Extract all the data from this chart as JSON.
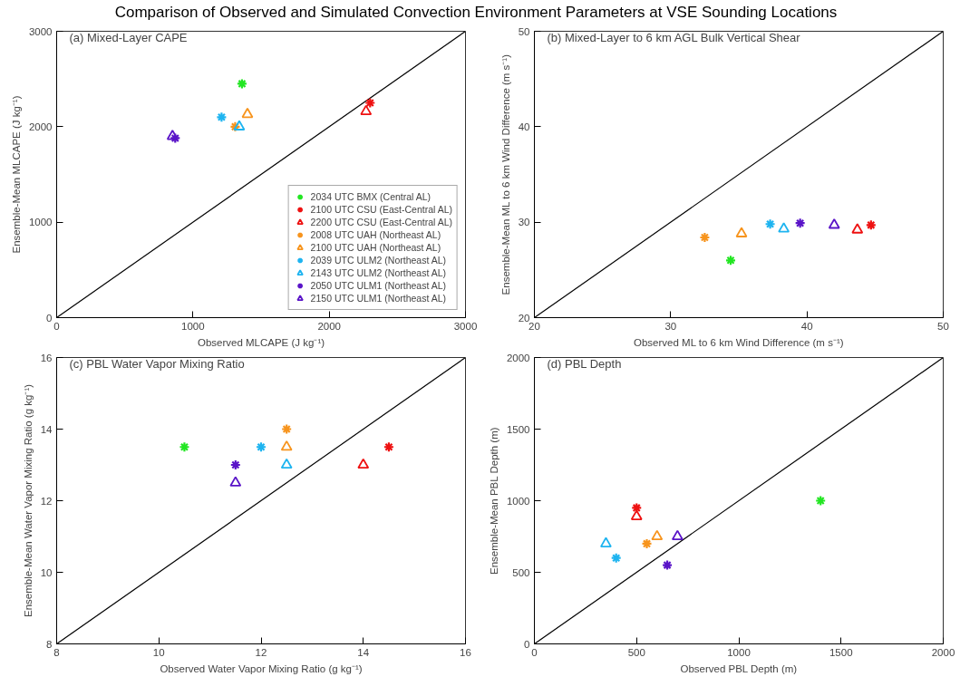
{
  "chart_data": [
    {
      "type": "scatter",
      "title": "(a) Mixed-Layer CAPE",
      "annotations": [
        "Comparison of Observed and Simulated Convection Environment Parameters at VSE Sounding Locations"
      ],
      "xlabel": "Observed MLCAPE (J kg⁻¹)",
      "ylabel": "Ensemble-Mean MLCAPE (J kg⁻¹)",
      "xlim": [
        0,
        3000
      ],
      "ylim": [
        0,
        3000
      ],
      "xticks": [
        0,
        1000,
        2000,
        3000
      ],
      "yticks": [
        0,
        1000,
        2000,
        3000
      ],
      "grid": false,
      "legend": "bottom right",
      "series": [
        {
          "type": "line",
          "color": "#000000",
          "x": [
            0,
            3000
          ],
          "values": [
            0,
            3000
          ]
        },
        {
          "name": "2034 UTC BMX (Central AL)",
          "color": "#22e622",
          "marker": "cross",
          "x": [
            1360
          ],
          "values": [
            2450
          ]
        },
        {
          "name": "2100 UTC CSU (East-Central AL)",
          "color": "#ee1111",
          "marker": "cross",
          "x": [
            2300
          ],
          "values": [
            2250
          ]
        },
        {
          "name": "2200 UTC CSU (East-Central AL)",
          "color": "#ee1111",
          "marker": "triangle",
          "x": [
            2270
          ],
          "values": [
            2160
          ]
        },
        {
          "name": "2008 UTC UAH (Northeast AL)",
          "color": "#f7941d",
          "marker": "cross",
          "x": [
            1310
          ],
          "values": [
            2000
          ]
        },
        {
          "name": "2100 UTC UAH (Northeast AL)",
          "color": "#f7941d",
          "marker": "triangle",
          "x": [
            1400
          ],
          "values": [
            2130
          ]
        },
        {
          "name": "2039 UTC ULM2 (Northeast AL)",
          "color": "#1eb4f0",
          "marker": "cross",
          "x": [
            1210
          ],
          "values": [
            2100
          ]
        },
        {
          "name": "2143 UTC ULM2 (Northeast AL)",
          "color": "#1eb4f0",
          "marker": "triangle",
          "x": [
            1340
          ],
          "values": [
            2000
          ]
        },
        {
          "name": "2050 UTC ULM1 (Northeast AL)",
          "color": "#5a14c8",
          "marker": "cross",
          "x": [
            870
          ],
          "values": [
            1880
          ]
        },
        {
          "name": "2150 UTC ULM1 (Northeast AL)",
          "color": "#5a14c8",
          "marker": "triangle",
          "x": [
            850
          ],
          "values": [
            1900
          ]
        }
      ]
    },
    {
      "type": "scatter",
      "title": "(b) Mixed-Layer to 6 km AGL Bulk Vertical Shear",
      "xlabel": "Observed ML to 6 km Wind Difference (m s⁻¹)",
      "ylabel": "Ensemble-Mean ML to 6 km Wind Difference (m s⁻¹)",
      "xlim": [
        20,
        50
      ],
      "ylim": [
        20,
        50
      ],
      "xticks": [
        20,
        30,
        40,
        50
      ],
      "yticks": [
        20,
        30,
        40,
        50
      ],
      "grid": false,
      "series": [
        {
          "type": "line",
          "color": "#000000",
          "x": [
            20,
            50
          ],
          "values": [
            20,
            50
          ]
        },
        {
          "color": "#22e622",
          "marker": "cross",
          "x": [
            34.4
          ],
          "values": [
            26.0
          ]
        },
        {
          "color": "#ee1111",
          "marker": "cross",
          "x": [
            44.7
          ],
          "values": [
            29.7
          ]
        },
        {
          "color": "#ee1111",
          "marker": "triangle",
          "x": [
            43.7
          ],
          "values": [
            29.2
          ]
        },
        {
          "color": "#f7941d",
          "marker": "cross",
          "x": [
            32.5
          ],
          "values": [
            28.4
          ]
        },
        {
          "color": "#f7941d",
          "marker": "triangle",
          "x": [
            35.2
          ],
          "values": [
            28.8
          ]
        },
        {
          "color": "#1eb4f0",
          "marker": "cross",
          "x": [
            37.3
          ],
          "values": [
            29.8
          ]
        },
        {
          "color": "#1eb4f0",
          "marker": "triangle",
          "x": [
            38.3
          ],
          "values": [
            29.3
          ]
        },
        {
          "color": "#5a14c8",
          "marker": "cross",
          "x": [
            39.5
          ],
          "values": [
            29.9
          ]
        },
        {
          "color": "#5a14c8",
          "marker": "triangle",
          "x": [
            42.0
          ],
          "values": [
            29.7
          ]
        }
      ]
    },
    {
      "type": "scatter",
      "title": "(c) PBL Water Vapor Mixing Ratio",
      "xlabel": "Observed Water Vapor Mixing Ratio (g kg⁻¹)",
      "ylabel": "Ensemble-Mean Water Vapor Mixing Ratio (g kg⁻¹)",
      "xlim": [
        8,
        16
      ],
      "ylim": [
        8,
        16
      ],
      "xticks": [
        8,
        10,
        12,
        14,
        16
      ],
      "yticks": [
        8,
        10,
        12,
        14,
        16
      ],
      "grid": false,
      "series": [
        {
          "type": "line",
          "color": "#000000",
          "x": [
            8,
            16
          ],
          "values": [
            8,
            16
          ]
        },
        {
          "color": "#22e622",
          "marker": "cross",
          "x": [
            10.5
          ],
          "values": [
            13.5
          ]
        },
        {
          "color": "#ee1111",
          "marker": "cross",
          "x": [
            14.5
          ],
          "values": [
            13.5
          ]
        },
        {
          "color": "#ee1111",
          "marker": "triangle",
          "x": [
            14.0
          ],
          "values": [
            13.0
          ]
        },
        {
          "color": "#f7941d",
          "marker": "cross",
          "x": [
            12.5
          ],
          "values": [
            14.0
          ]
        },
        {
          "color": "#f7941d",
          "marker": "triangle",
          "x": [
            12.5
          ],
          "values": [
            13.5
          ]
        },
        {
          "color": "#1eb4f0",
          "marker": "cross",
          "x": [
            12.0
          ],
          "values": [
            13.5
          ]
        },
        {
          "color": "#1eb4f0",
          "marker": "triangle",
          "x": [
            12.5
          ],
          "values": [
            13.0
          ]
        },
        {
          "color": "#5a14c8",
          "marker": "cross",
          "x": [
            11.5
          ],
          "values": [
            13.0
          ]
        },
        {
          "color": "#5a14c8",
          "marker": "triangle",
          "x": [
            11.5
          ],
          "values": [
            12.5
          ]
        }
      ]
    },
    {
      "type": "scatter",
      "title": "(d) PBL Depth",
      "xlabel": "Observed PBL Depth (m)",
      "ylabel": "Ensemble-Mean PBL Depth (m)",
      "xlim": [
        0,
        2000
      ],
      "ylim": [
        0,
        2000
      ],
      "xticks": [
        0,
        500,
        1000,
        1500,
        2000
      ],
      "yticks": [
        0,
        500,
        1000,
        1500,
        2000
      ],
      "grid": false,
      "series": [
        {
          "type": "line",
          "color": "#000000",
          "x": [
            0,
            2000
          ],
          "values": [
            0,
            2000
          ]
        },
        {
          "color": "#22e622",
          "marker": "cross",
          "x": [
            1400
          ],
          "values": [
            1000
          ]
        },
        {
          "color": "#ee1111",
          "marker": "cross",
          "x": [
            500
          ],
          "values": [
            950
          ]
        },
        {
          "color": "#ee1111",
          "marker": "triangle",
          "x": [
            500
          ],
          "values": [
            890
          ]
        },
        {
          "color": "#f7941d",
          "marker": "cross",
          "x": [
            550
          ],
          "values": [
            700
          ]
        },
        {
          "color": "#f7941d",
          "marker": "triangle",
          "x": [
            600
          ],
          "values": [
            750
          ]
        },
        {
          "color": "#1eb4f0",
          "marker": "cross",
          "x": [
            400
          ],
          "values": [
            600
          ]
        },
        {
          "color": "#1eb4f0",
          "marker": "triangle",
          "x": [
            350
          ],
          "values": [
            700
          ]
        },
        {
          "color": "#5a14c8",
          "marker": "cross",
          "x": [
            650
          ],
          "values": [
            550
          ]
        },
        {
          "color": "#5a14c8",
          "marker": "triangle",
          "x": [
            700
          ],
          "values": [
            750
          ]
        }
      ]
    }
  ]
}
